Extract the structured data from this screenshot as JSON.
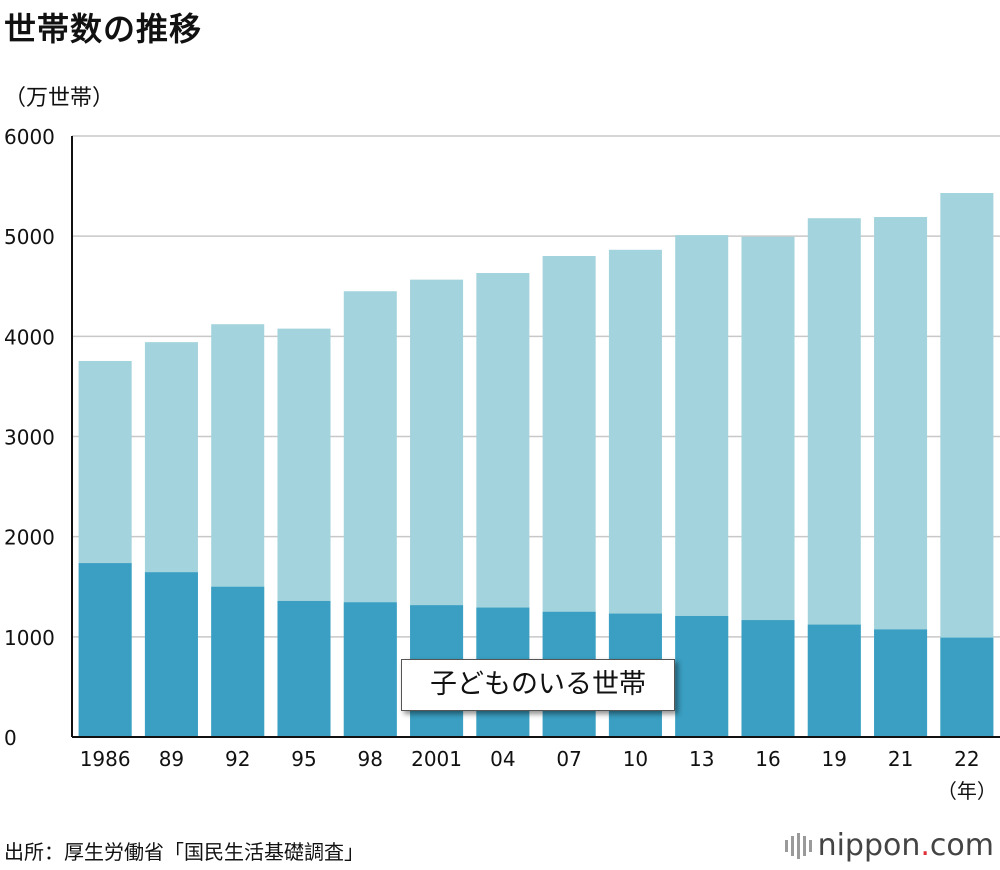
{
  "chart_data": {
    "type": "bar",
    "stacked": true,
    "title": "世帯数の推移",
    "ylabel": "（万世帯）",
    "xunit": "（年）",
    "ylim": [
      0,
      6000
    ],
    "yticks": [
      0,
      1000,
      2000,
      3000,
      4000,
      5000,
      6000
    ],
    "grid": true,
    "categories": [
      "1986",
      "89",
      "92",
      "95",
      "98",
      "2001",
      "04",
      "07",
      "10",
      "13",
      "16",
      "19",
      "21",
      "22"
    ],
    "totals": [
      3754,
      3942,
      4121,
      4077,
      4450,
      4566,
      4632,
      4802,
      4864,
      5011,
      4994,
      5179,
      5191,
      5431
    ],
    "series": [
      {
        "name": "子どものいる世帯",
        "values": [
          1736,
          1645,
          1500,
          1358,
          1345,
          1316,
          1292,
          1250,
          1232,
          1208,
          1167,
          1122,
          1074,
          992
        ],
        "color": "#3a9fc3"
      }
    ],
    "total_color": "#a3d3dc",
    "annotation": "子どものいる世帯"
  },
  "footer": {
    "source": "出所：厚生労働省「国民生活基礎調査」",
    "brand_main": "nippon",
    "brand_dot": ".",
    "brand_suffix": "com"
  },
  "colors": {
    "grid": "#c8c8c8",
    "axis": "#111111"
  }
}
